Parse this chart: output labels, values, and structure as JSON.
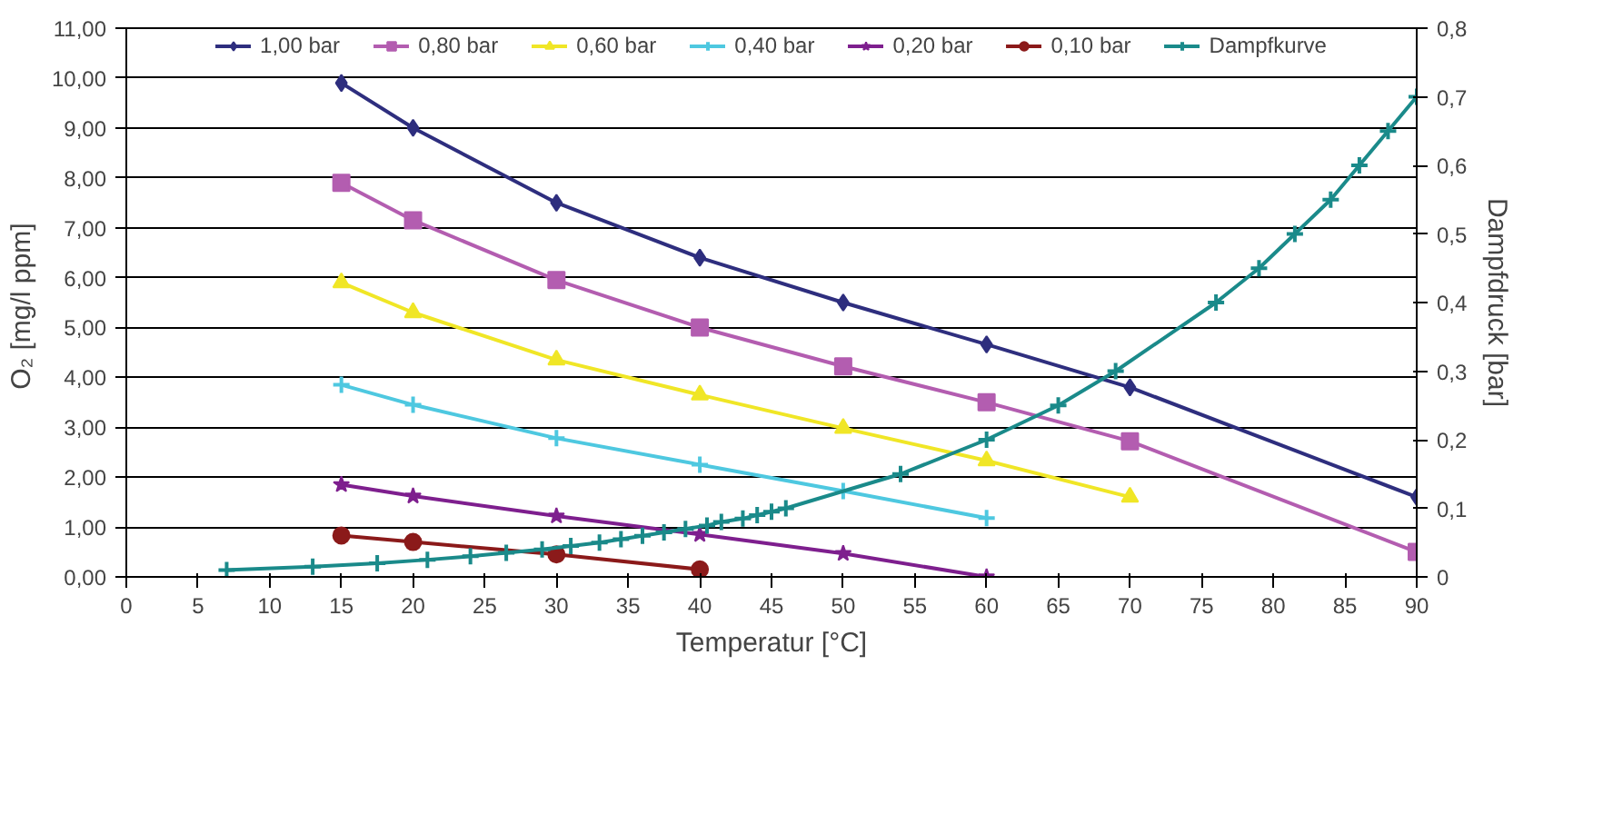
{
  "chart_data": {
    "type": "line",
    "xlabel": "Temperatur [°C]",
    "ylabel": "O₂ [mg/l  ppm]",
    "y2label": "Dampfdruck [bar]",
    "xlim": [
      0,
      90
    ],
    "xticks": [
      0,
      5,
      10,
      15,
      20,
      25,
      30,
      35,
      40,
      45,
      50,
      55,
      60,
      65,
      70,
      75,
      80,
      85,
      90
    ],
    "ylim": [
      0,
      11
    ],
    "yticks": [
      {
        "value": 0,
        "label": "0,00"
      },
      {
        "value": 1,
        "label": "1,00"
      },
      {
        "value": 2,
        "label": "2,00"
      },
      {
        "value": 3,
        "label": "3,00"
      },
      {
        "value": 4,
        "label": "4,00"
      },
      {
        "value": 5,
        "label": "5,00"
      },
      {
        "value": 6,
        "label": "6,00"
      },
      {
        "value": 7,
        "label": "7,00"
      },
      {
        "value": 8,
        "label": "8,00"
      },
      {
        "value": 9,
        "label": "9,00"
      },
      {
        "value": 10,
        "label": "10,00"
      },
      {
        "value": 11,
        "label": "11,00"
      }
    ],
    "y2lim": [
      0,
      0.8
    ],
    "y2ticks": [
      0,
      {
        "value": 0.1,
        "label": "0,1"
      },
      {
        "value": 0.2,
        "label": "0,2"
      },
      {
        "value": 0.3,
        "label": "0,3"
      },
      {
        "value": 0.4,
        "label": "0,4"
      },
      {
        "value": 0.5,
        "label": "0,5"
      },
      {
        "value": 0.6,
        "label": "0,6"
      },
      {
        "value": 0.7,
        "label": "0,7"
      },
      {
        "value": 0.8,
        "label": "0,8"
      }
    ],
    "grid": "y",
    "legend": "top",
    "series": [
      {
        "name": "1,00 bar",
        "color": "#2e2e7e",
        "marker": "diamond",
        "x": [
          15,
          20,
          30,
          40,
          50,
          60,
          70,
          90
        ],
        "values": [
          9.9,
          9.0,
          7.5,
          6.4,
          5.5,
          4.66,
          3.8,
          1.6
        ]
      },
      {
        "name": "0,80 bar",
        "color": "#b35db0",
        "marker": "square",
        "x": [
          15,
          20,
          30,
          40,
          50,
          60,
          70,
          90
        ],
        "values": [
          7.9,
          7.15,
          5.95,
          5.0,
          4.22,
          3.5,
          2.72,
          0.5
        ]
      },
      {
        "name": "0,60 bar",
        "color": "#f0e626",
        "marker": "triangle",
        "x": [
          15,
          20,
          30,
          40,
          50,
          60,
          70
        ],
        "values": [
          5.9,
          5.3,
          4.35,
          3.65,
          2.98,
          2.33,
          1.6
        ]
      },
      {
        "name": "0,40 bar",
        "color": "#4ec8e0",
        "marker": "cross",
        "x": [
          15,
          20,
          30,
          40,
          50,
          60
        ],
        "values": [
          3.85,
          3.45,
          2.78,
          2.25,
          1.72,
          1.18
        ]
      },
      {
        "name": "0,20 bar",
        "color": "#7e1f8e",
        "marker": "star",
        "x": [
          15,
          20,
          30,
          40,
          50,
          60
        ],
        "values": [
          1.85,
          1.62,
          1.22,
          0.85,
          0.47,
          0.0
        ]
      },
      {
        "name": "0,10 bar",
        "color": "#8b1a1a",
        "marker": "circle",
        "x": [
          15,
          20,
          30,
          40
        ],
        "values": [
          0.83,
          0.7,
          0.45,
          0.15
        ]
      },
      {
        "name": "Dampfkurve",
        "color": "#1a8a8a",
        "marker": "cross",
        "axis": "y2",
        "x": [
          7,
          13,
          17.5,
          21,
          24,
          26.5,
          29,
          31,
          33,
          34.5,
          36,
          37.5,
          39,
          40.5,
          41.5,
          43,
          44,
          45,
          46,
          54,
          60,
          65,
          69,
          76,
          79,
          81.5,
          84,
          86,
          88,
          90
        ],
        "values": [
          0.01,
          0.015,
          0.02,
          0.025,
          0.03,
          0.035,
          0.04,
          0.045,
          0.05,
          0.055,
          0.06,
          0.065,
          0.07,
          0.075,
          0.08,
          0.085,
          0.09,
          0.095,
          0.1,
          0.15,
          0.2,
          0.25,
          0.3,
          0.4,
          0.45,
          0.5,
          0.55,
          0.6,
          0.65,
          0.7
        ]
      }
    ]
  }
}
